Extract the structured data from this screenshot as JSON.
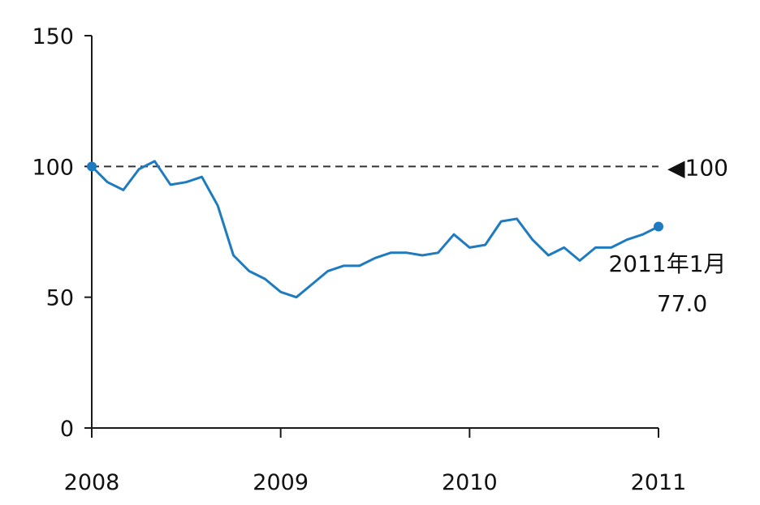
{
  "chart_data": {
    "type": "line",
    "title": "",
    "xlabel": "",
    "ylabel": "",
    "xlim": [
      2008.0,
      2011.0
    ],
    "ylim": [
      0,
      150
    ],
    "y_ticks": [
      0,
      50,
      100,
      150
    ],
    "y_tick_labels": [
      "0",
      "50",
      "100",
      "150"
    ],
    "x_ticks": [
      2008,
      2009,
      2010,
      2011
    ],
    "x_tick_labels": [
      "2008",
      "2009",
      "2010",
      "2011"
    ],
    "grid": false,
    "legend": "none",
    "series_color": "#1f7bbf",
    "series": [
      {
        "values": [
          {
            "x": 2008.0,
            "y": 100
          },
          {
            "x": 2008.083,
            "y": 94
          },
          {
            "x": 2008.167,
            "y": 91
          },
          {
            "x": 2008.25,
            "y": 99
          },
          {
            "x": 2008.333,
            "y": 102
          },
          {
            "x": 2008.417,
            "y": 93
          },
          {
            "x": 2008.5,
            "y": 94
          },
          {
            "x": 2008.583,
            "y": 96
          },
          {
            "x": 2008.667,
            "y": 85
          },
          {
            "x": 2008.75,
            "y": 66
          },
          {
            "x": 2008.833,
            "y": 60
          },
          {
            "x": 2008.917,
            "y": 57
          },
          {
            "x": 2009.0,
            "y": 52
          },
          {
            "x": 2009.083,
            "y": 50
          },
          {
            "x": 2009.167,
            "y": 55
          },
          {
            "x": 2009.25,
            "y": 60
          },
          {
            "x": 2009.333,
            "y": 62
          },
          {
            "x": 2009.417,
            "y": 62
          },
          {
            "x": 2009.5,
            "y": 65
          },
          {
            "x": 2009.583,
            "y": 67
          },
          {
            "x": 2009.667,
            "y": 67
          },
          {
            "x": 2009.75,
            "y": 66
          },
          {
            "x": 2009.833,
            "y": 67
          },
          {
            "x": 2009.917,
            "y": 74
          },
          {
            "x": 2010.0,
            "y": 69
          },
          {
            "x": 2010.083,
            "y": 70
          },
          {
            "x": 2010.167,
            "y": 79
          },
          {
            "x": 2010.25,
            "y": 80
          },
          {
            "x": 2010.333,
            "y": 72
          },
          {
            "x": 2010.417,
            "y": 66
          },
          {
            "x": 2010.5,
            "y": 69
          },
          {
            "x": 2010.583,
            "y": 64
          },
          {
            "x": 2010.667,
            "y": 69
          },
          {
            "x": 2010.75,
            "y": 69
          },
          {
            "x": 2010.833,
            "y": 72
          },
          {
            "x": 2010.917,
            "y": 74
          },
          {
            "x": 2011.0,
            "y": 77
          }
        ]
      }
    ],
    "reference_line": {
      "y": 100,
      "label": "◀100"
    },
    "annotation": {
      "line1": "2011年1月",
      "line2": "77.0"
    }
  }
}
